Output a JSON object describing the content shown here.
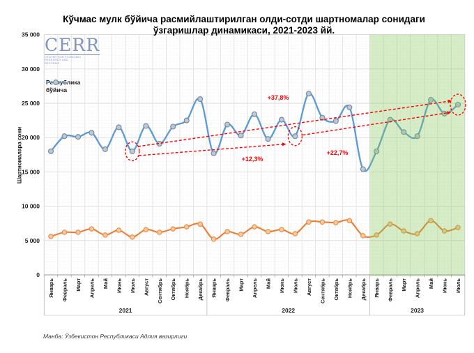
{
  "header": {
    "title": "Кўчмас мулк бўйича расмийлаштирилган олди-сотди шартномалар сонидаги ўзгаришлар динамикаси, 2021-2023 йй."
  },
  "logo": {
    "text": "CERR",
    "subtext": "Center for Economic Research and Reforms"
  },
  "legend": {
    "line1": "Республика",
    "line2": "бўйича"
  },
  "footer": {
    "source": "Манба: Ўзбекистон Республикаси Адлия вазирлиги"
  },
  "chart_data": {
    "type": "line",
    "title": "Кўчмас мулк бўйича расмийлаштирилган олди-сотди шартномалар сонидаги ўзгаришлар динамикаси, 2021-2023 йй.",
    "ylabel": "Шартномалара сони",
    "ylim": [
      0,
      35000
    ],
    "ytick_step": 5000,
    "grid": true,
    "legend_position": "top-left",
    "x_years": [
      {
        "label": "2021",
        "months": [
          "Январь",
          "Февраль",
          "Март",
          "Апрель",
          "Май",
          "Июнь",
          "Июль",
          "Август",
          "Сентябрь",
          "Октябрь",
          "Ноябрь",
          "Декабрь"
        ]
      },
      {
        "label": "2022",
        "months": [
          "Январь",
          "Февраль",
          "Март",
          "Апрель",
          "Май",
          "Июнь",
          "Июль",
          "Август",
          "Сентябрь",
          "Октябрь",
          "Ноябрь",
          "Декабрь"
        ]
      },
      {
        "label": "2023",
        "months": [
          "Январь",
          "Февраль",
          "Март",
          "Апрель",
          "Май",
          "Июнь",
          "Июль"
        ]
      }
    ],
    "series": [
      {
        "name": "Республика бўйича",
        "color": "#5B9BD5",
        "marker_fill": "#bdc8d4",
        "marker_stroke": "#74889f",
        "values": [
          18000,
          20200,
          20100,
          20700,
          18300,
          21500,
          18000,
          21700,
          19100,
          21600,
          22500,
          25600,
          17700,
          21900,
          20300,
          23400,
          19800,
          22600,
          20200,
          26400,
          22900,
          22400,
          24400,
          15400,
          18000,
          22600,
          20800,
          20200,
          25500,
          23500,
          24800
        ]
      },
      {
        "name": "",
        "color": "#ED7D31",
        "marker_fill": "#f8c9a0",
        "marker_stroke": "#e98a3e",
        "values": [
          5600,
          6200,
          6200,
          6700,
          5800,
          6500,
          5500,
          6600,
          6200,
          6700,
          7000,
          7400,
          5200,
          6300,
          5900,
          7000,
          6300,
          6600,
          6000,
          7700,
          7700,
          7600,
          7900,
          5700,
          5800,
          7400,
          6400,
          6000,
          7900,
          6400,
          6900
        ]
      }
    ],
    "highlight_region": {
      "covers_year": "2023",
      "color": "#7ec850",
      "opacity": 0.32
    },
    "annotations": {
      "accent_color": "#ff0000",
      "circled_points": [
        {
          "month_index": 6
        },
        {
          "month_index": 18
        },
        {
          "month_index": 30
        }
      ],
      "arrows": [
        {
          "from_index": 6,
          "to_index": 30,
          "label": "+37,8%"
        },
        {
          "from_index": 6,
          "to_index": 18,
          "label": "+12,3%"
        },
        {
          "from_index": 18,
          "to_index": 30,
          "label": "+22,7%"
        }
      ]
    }
  }
}
